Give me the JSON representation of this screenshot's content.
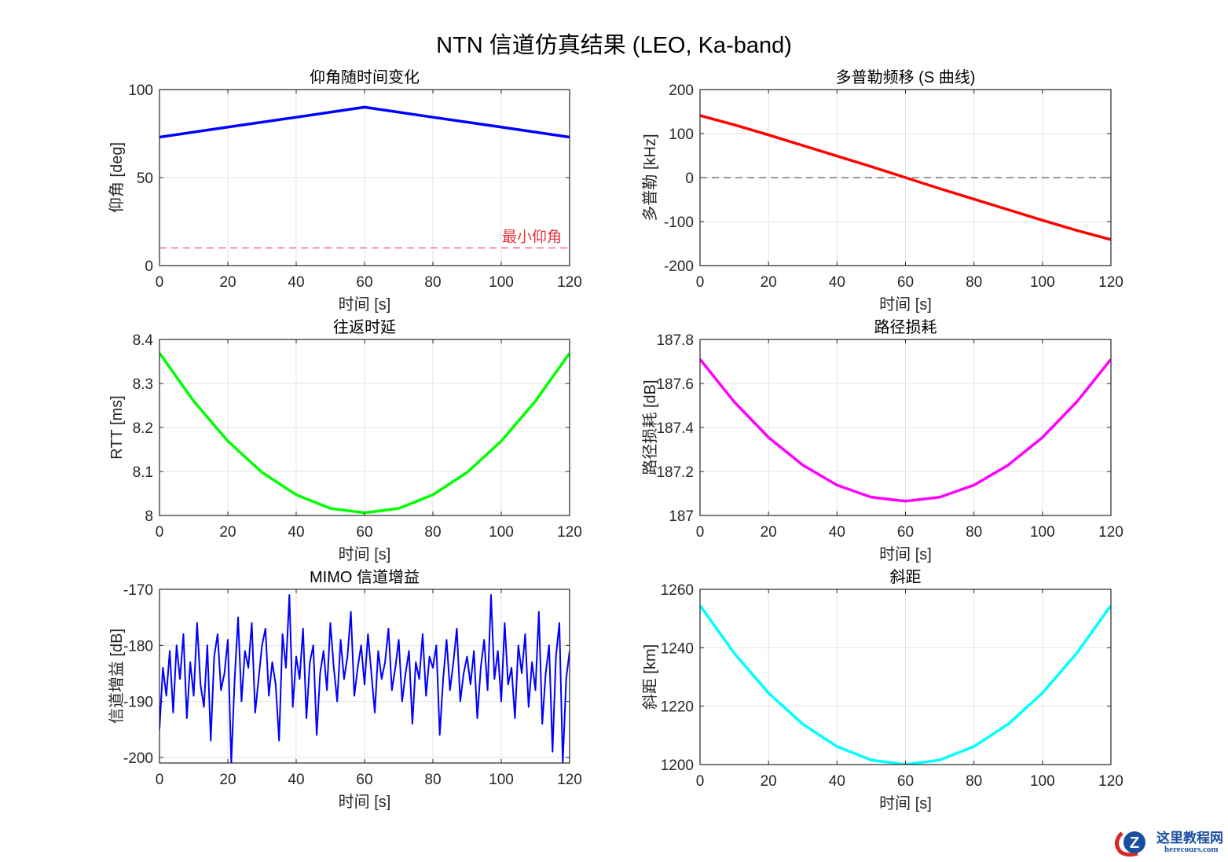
{
  "figure": {
    "title": "NTN 信道仿真结果 (LEO, Ka-band)"
  },
  "watermark": {
    "cn": "这里教程网",
    "en": "herecours.com"
  },
  "chart_data": [
    {
      "type": "line",
      "title": "仰角随时间变化",
      "xlabel": "时间 [s]",
      "ylabel": "仰角 [deg]",
      "xlim": [
        0,
        120
      ],
      "ylim": [
        0,
        100
      ],
      "xticks": [
        0,
        20,
        40,
        60,
        80,
        100,
        120
      ],
      "yticks": [
        0,
        50,
        100
      ],
      "grid": true,
      "series": [
        {
          "x": [
            0,
            20,
            40,
            60,
            80,
            100,
            120
          ],
          "y": [
            73,
            78.7,
            84.3,
            90,
            84.3,
            78.7,
            73
          ],
          "color": "#0000ff",
          "width": 3.5
        }
      ],
      "reference_line": {
        "y": 10,
        "color": "#e8313d",
        "style": "dashed",
        "label": "最小仰角"
      }
    },
    {
      "type": "line",
      "title": "多普勒频移 (S 曲线)",
      "xlabel": "时间 [s]",
      "ylabel": "多普勒 [kHz]",
      "xlim": [
        0,
        120
      ],
      "ylim": [
        -200,
        200
      ],
      "xticks": [
        0,
        20,
        40,
        60,
        80,
        100,
        120
      ],
      "yticks": [
        -200,
        -100,
        0,
        100,
        200
      ],
      "grid": true,
      "series": [
        {
          "x": [
            0,
            10,
            20,
            30,
            40,
            50,
            60,
            70,
            80,
            90,
            100,
            110,
            120
          ],
          "y": [
            141,
            120,
            97,
            73,
            49,
            25,
            0,
            -25,
            -49,
            -73,
            -97,
            -120,
            -141
          ],
          "color": "#ff0000",
          "width": 3.5
        }
      ],
      "reference_line": {
        "y": 0,
        "color": "#333333",
        "style": "dashed",
        "label": ""
      }
    },
    {
      "type": "line",
      "title": "往返时延",
      "xlabel": "时间 [s]",
      "ylabel": "RTT [ms]",
      "xlim": [
        0,
        120
      ],
      "ylim": [
        8,
        8.4
      ],
      "xticks": [
        0,
        20,
        40,
        60,
        80,
        100,
        120
      ],
      "yticks": [
        8,
        8.1,
        8.2,
        8.3,
        8.4
      ],
      "grid": true,
      "series": [
        {
          "x": [
            0,
            10,
            20,
            30,
            40,
            50,
            60,
            70,
            80,
            90,
            100,
            110,
            120
          ],
          "y": [
            8.369,
            8.26,
            8.169,
            8.098,
            8.047,
            8.016,
            8.006,
            8.016,
            8.047,
            8.098,
            8.169,
            8.26,
            8.369
          ],
          "color": "#00ff00",
          "width": 3.5
        }
      ]
    },
    {
      "type": "line",
      "title": "路径损耗",
      "xlabel": "时间 [s]",
      "ylabel": "路径损耗 [dB]",
      "xlim": [
        0,
        120
      ],
      "ylim": [
        187,
        187.8
      ],
      "xticks": [
        0,
        20,
        40,
        60,
        80,
        100,
        120
      ],
      "yticks": [
        187,
        187.2,
        187.4,
        187.6,
        187.8
      ],
      "grid": true,
      "series": [
        {
          "x": [
            0,
            10,
            20,
            30,
            40,
            50,
            60,
            70,
            80,
            90,
            100,
            110,
            120
          ],
          "y": [
            187.71,
            187.516,
            187.355,
            187.229,
            187.138,
            187.083,
            187.065,
            187.083,
            187.138,
            187.229,
            187.355,
            187.516,
            187.71
          ],
          "color": "#ff00ff",
          "width": 3.5
        }
      ]
    },
    {
      "type": "line",
      "title": "MIMO 信道增益",
      "xlabel": "时间 [s]",
      "ylabel": "信道增益 [dB]",
      "xlim": [
        0,
        120
      ],
      "ylim": [
        -201,
        -170
      ],
      "xticks": [
        0,
        20,
        40,
        60,
        80,
        100,
        120
      ],
      "yticks": [
        -200,
        -190,
        -180,
        -170
      ],
      "grid": true,
      "series": [
        {
          "x_start": 0,
          "x_step": 1,
          "color": "#0000ff",
          "width": 2,
          "y": [
            -195,
            -184,
            -189,
            -181,
            -192,
            -180,
            -186,
            -178,
            -193,
            -183,
            -189,
            -176,
            -187,
            -191,
            -180,
            -197,
            -182,
            -178,
            -188,
            -185,
            -179,
            -201,
            -186,
            -175,
            -190,
            -181,
            -184,
            -176,
            -192,
            -186,
            -180,
            -177,
            -189,
            -183,
            -187,
            -197,
            -178,
            -184,
            -171,
            -191,
            -182,
            -186,
            -177,
            -193,
            -183,
            -180,
            -196,
            -185,
            -181,
            -188,
            -176,
            -184,
            -190,
            -179,
            -186,
            -182,
            -174,
            -189,
            -184,
            -180,
            -187,
            -178,
            -185,
            -192,
            -181,
            -186,
            -183,
            -177,
            -188,
            -184,
            -179,
            -190,
            -185,
            -181,
            -194,
            -183,
            -186,
            -178,
            -189,
            -182,
            -184,
            -180,
            -196,
            -186,
            -179,
            -188,
            -183,
            -177,
            -190,
            -185,
            -182,
            -187,
            -181,
            -193,
            -184,
            -179,
            -188,
            -171,
            -186,
            -181,
            -190,
            -176,
            -187,
            -184,
            -193,
            -180,
            -185,
            -178,
            -191,
            -183,
            -188,
            -174,
            -194,
            -185,
            -180,
            -199,
            -182,
            -176,
            -201,
            -186,
            -181
          ]
        }
      ]
    },
    {
      "type": "line",
      "title": "斜距",
      "xlabel": "时间 [s]",
      "ylabel": "斜距 [km]",
      "xlim": [
        0,
        120
      ],
      "ylim": [
        1200,
        1260
      ],
      "xticks": [
        0,
        20,
        40,
        60,
        80,
        100,
        120
      ],
      "yticks": [
        1200,
        1220,
        1240,
        1260
      ],
      "grid": true,
      "series": [
        {
          "x": [
            0,
            10,
            20,
            30,
            40,
            50,
            60,
            70,
            80,
            90,
            100,
            110,
            120
          ],
          "y": [
            1254.5,
            1238.1,
            1224.5,
            1213.85,
            1206.18,
            1201.55,
            1200,
            1201.55,
            1206.18,
            1213.85,
            1224.5,
            1238.1,
            1254.5
          ],
          "color": "#00ffff",
          "width": 3.5
        }
      ]
    }
  ]
}
